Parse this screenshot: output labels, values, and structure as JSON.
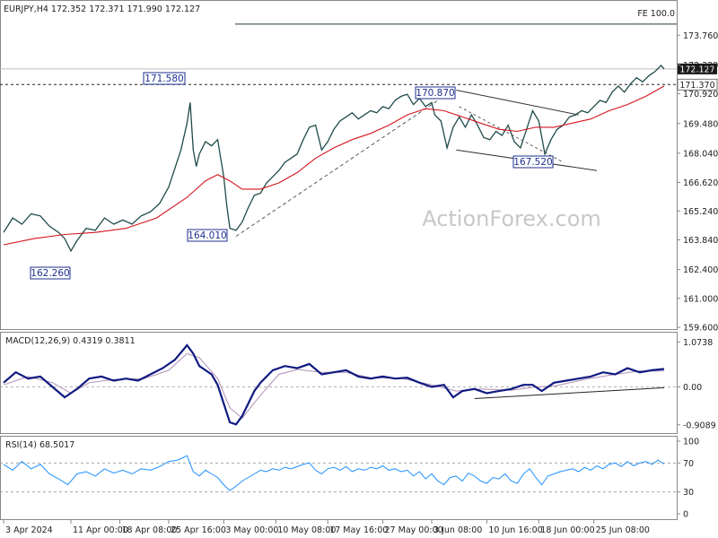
{
  "chart_data": {
    "type": "line",
    "symbol_header": "EURJPY,H4  172.352 172.371 171.990 172.127",
    "watermark": "ActionForex.com",
    "price_panel": {
      "ylim": [
        159.6,
        174.6
      ],
      "yticks": [
        "173.760",
        "172.320",
        "170.920",
        "169.480",
        "168.040",
        "166.620",
        "165.240",
        "163.840",
        "162.400",
        "161.000",
        "159.600"
      ],
      "current_price": "172.127",
      "resistance_level": "171.370",
      "fe_label": "FE 100.0",
      "fe_value": 174.3,
      "annotations": [
        {
          "label": "171.580",
          "value": 171.58
        },
        {
          "label": "164.010",
          "value": 164.01
        },
        {
          "label": "162.260",
          "value": 162.26
        },
        {
          "label": "170.870",
          "value": 170.87
        },
        {
          "label": "167.520",
          "value": 167.52
        }
      ],
      "price_series": [
        [
          0,
          164.2
        ],
        [
          3,
          164.9
        ],
        [
          6,
          164.6
        ],
        [
          9,
          165.1
        ],
        [
          12,
          165.0
        ],
        [
          15,
          164.5
        ],
        [
          18,
          164.2
        ],
        [
          20,
          163.9
        ],
        [
          22,
          163.3
        ],
        [
          24,
          163.8
        ],
        [
          27,
          164.4
        ],
        [
          30,
          164.3
        ],
        [
          33,
          164.9
        ],
        [
          36,
          164.6
        ],
        [
          39,
          164.8
        ],
        [
          42,
          164.6
        ],
        [
          45,
          165.0
        ],
        [
          48,
          165.2
        ],
        [
          51,
          165.6
        ],
        [
          54,
          166.4
        ],
        [
          56,
          167.3
        ],
        [
          58,
          168.2
        ],
        [
          60,
          169.5
        ],
        [
          61,
          170.5
        ],
        [
          62,
          168.2
        ],
        [
          63,
          167.4
        ],
        [
          64,
          168.0
        ],
        [
          66,
          168.6
        ],
        [
          68,
          168.4
        ],
        [
          70,
          168.7
        ],
        [
          72,
          166.9
        ],
        [
          73,
          165.5
        ],
        [
          74,
          164.4
        ],
        [
          76,
          164.3
        ],
        [
          78,
          164.7
        ],
        [
          80,
          165.4
        ],
        [
          82,
          166.0
        ],
        [
          84,
          166.1
        ],
        [
          86,
          166.6
        ],
        [
          88,
          166.9
        ],
        [
          90,
          167.2
        ],
        [
          92,
          167.6
        ],
        [
          94,
          167.8
        ],
        [
          96,
          168.0
        ],
        [
          98,
          168.7
        ],
        [
          100,
          169.3
        ],
        [
          102,
          169.4
        ],
        [
          104,
          168.2
        ],
        [
          106,
          168.6
        ],
        [
          108,
          169.2
        ],
        [
          110,
          169.6
        ],
        [
          112,
          169.8
        ],
        [
          114,
          170.0
        ],
        [
          116,
          169.7
        ],
        [
          118,
          169.9
        ],
        [
          120,
          170.1
        ],
        [
          122,
          170.0
        ],
        [
          124,
          170.3
        ],
        [
          126,
          170.2
        ],
        [
          128,
          170.6
        ],
        [
          130,
          170.8
        ],
        [
          132,
          170.9
        ],
        [
          134,
          170.4
        ],
        [
          136,
          170.7
        ],
        [
          138,
          170.3
        ],
        [
          140,
          170.5
        ],
        [
          141,
          169.9
        ],
        [
          143,
          169.6
        ],
        [
          145,
          168.3
        ],
        [
          147,
          169.3
        ],
        [
          149,
          169.8
        ],
        [
          151,
          169.3
        ],
        [
          153,
          169.9
        ],
        [
          155,
          169.4
        ],
        [
          157,
          168.8
        ],
        [
          159,
          168.7
        ],
        [
          161,
          169.1
        ],
        [
          163,
          168.9
        ],
        [
          165,
          169.4
        ],
        [
          167,
          168.6
        ],
        [
          169,
          168.3
        ],
        [
          171,
          169.2
        ],
        [
          173,
          170.1
        ],
        [
          175,
          169.6
        ],
        [
          177,
          168.0
        ],
        [
          179,
          168.7
        ],
        [
          181,
          169.2
        ],
        [
          183,
          169.4
        ],
        [
          185,
          169.8
        ],
        [
          187,
          169.9
        ],
        [
          189,
          170.1
        ],
        [
          191,
          170.0
        ],
        [
          193,
          170.3
        ],
        [
          195,
          170.6
        ],
        [
          197,
          170.5
        ],
        [
          199,
          171.0
        ],
        [
          201,
          171.3
        ],
        [
          203,
          171.0
        ],
        [
          205,
          171.4
        ],
        [
          207,
          171.7
        ],
        [
          209,
          171.5
        ],
        [
          211,
          171.8
        ],
        [
          213,
          172.0
        ],
        [
          215,
          172.3
        ],
        [
          216,
          172.127
        ]
      ],
      "ma_series": [
        [
          0,
          163.6
        ],
        [
          10,
          163.9
        ],
        [
          20,
          164.1
        ],
        [
          30,
          164.2
        ],
        [
          40,
          164.4
        ],
        [
          50,
          164.9
        ],
        [
          60,
          165.9
        ],
        [
          66,
          166.7
        ],
        [
          70,
          167.0
        ],
        [
          74,
          166.7
        ],
        [
          78,
          166.3
        ],
        [
          84,
          166.3
        ],
        [
          90,
          166.6
        ],
        [
          96,
          167.1
        ],
        [
          102,
          167.8
        ],
        [
          108,
          168.3
        ],
        [
          114,
          168.7
        ],
        [
          120,
          169.0
        ],
        [
          126,
          169.4
        ],
        [
          132,
          169.9
        ],
        [
          138,
          170.2
        ],
        [
          144,
          170.1
        ],
        [
          150,
          169.8
        ],
        [
          156,
          169.5
        ],
        [
          162,
          169.2
        ],
        [
          168,
          169.1
        ],
        [
          174,
          169.3
        ],
        [
          180,
          169.3
        ],
        [
          186,
          169.5
        ],
        [
          192,
          169.7
        ],
        [
          198,
          170.1
        ],
        [
          204,
          170.4
        ],
        [
          210,
          170.8
        ],
        [
          216,
          171.3
        ]
      ]
    },
    "macd_panel": {
      "label": "MACD(12,26,9) 0.4319 0.3811",
      "ylim": [
        -1.0,
        1.15
      ],
      "yticks": [
        "1.0738",
        "0.00",
        "-0.9089"
      ],
      "macd_series": [
        [
          0,
          0.1
        ],
        [
          4,
          0.35
        ],
        [
          8,
          0.2
        ],
        [
          12,
          0.25
        ],
        [
          16,
          0.0
        ],
        [
          20,
          -0.25
        ],
        [
          24,
          -0.05
        ],
        [
          28,
          0.2
        ],
        [
          32,
          0.25
        ],
        [
          36,
          0.15
        ],
        [
          40,
          0.2
        ],
        [
          44,
          0.15
        ],
        [
          48,
          0.3
        ],
        [
          52,
          0.45
        ],
        [
          56,
          0.65
        ],
        [
          60,
          1.0
        ],
        [
          62,
          0.8
        ],
        [
          64,
          0.5
        ],
        [
          66,
          0.4
        ],
        [
          68,
          0.3
        ],
        [
          70,
          0.05
        ],
        [
          72,
          -0.4
        ],
        [
          74,
          -0.85
        ],
        [
          76,
          -0.9
        ],
        [
          78,
          -0.7
        ],
        [
          80,
          -0.4
        ],
        [
          82,
          -0.1
        ],
        [
          84,
          0.1
        ],
        [
          88,
          0.4
        ],
        [
          92,
          0.5
        ],
        [
          96,
          0.45
        ],
        [
          100,
          0.55
        ],
        [
          104,
          0.3
        ],
        [
          108,
          0.35
        ],
        [
          112,
          0.4
        ],
        [
          116,
          0.25
        ],
        [
          120,
          0.2
        ],
        [
          124,
          0.25
        ],
        [
          128,
          0.2
        ],
        [
          132,
          0.22
        ],
        [
          136,
          0.1
        ],
        [
          140,
          0.0
        ],
        [
          144,
          0.05
        ],
        [
          147,
          -0.25
        ],
        [
          150,
          -0.1
        ],
        [
          154,
          -0.05
        ],
        [
          158,
          -0.15
        ],
        [
          162,
          -0.1
        ],
        [
          166,
          -0.05
        ],
        [
          170,
          0.05
        ],
        [
          173,
          0.05
        ],
        [
          176,
          -0.1
        ],
        [
          180,
          0.1
        ],
        [
          184,
          0.15
        ],
        [
          188,
          0.2
        ],
        [
          192,
          0.25
        ],
        [
          196,
          0.35
        ],
        [
          200,
          0.3
        ],
        [
          204,
          0.45
        ],
        [
          208,
          0.35
        ],
        [
          212,
          0.4
        ],
        [
          216,
          0.43
        ]
      ],
      "signal_series": [
        [
          0,
          0.05
        ],
        [
          8,
          0.25
        ],
        [
          16,
          0.1
        ],
        [
          22,
          -0.15
        ],
        [
          28,
          0.1
        ],
        [
          36,
          0.18
        ],
        [
          46,
          0.2
        ],
        [
          54,
          0.4
        ],
        [
          60,
          0.8
        ],
        [
          64,
          0.7
        ],
        [
          70,
          0.2
        ],
        [
          74,
          -0.5
        ],
        [
          78,
          -0.75
        ],
        [
          84,
          -0.2
        ],
        [
          90,
          0.3
        ],
        [
          96,
          0.42
        ],
        [
          104,
          0.35
        ],
        [
          112,
          0.35
        ],
        [
          120,
          0.22
        ],
        [
          130,
          0.21
        ],
        [
          140,
          0.05
        ],
        [
          148,
          -0.1
        ],
        [
          156,
          -0.05
        ],
        [
          166,
          -0.08
        ],
        [
          174,
          0.0
        ],
        [
          180,
          0.02
        ],
        [
          190,
          0.18
        ],
        [
          200,
          0.3
        ],
        [
          208,
          0.38
        ],
        [
          216,
          0.38
        ]
      ]
    },
    "rsi_panel": {
      "label": "RSI(14) 68.5017",
      "ylim": [
        0,
        100
      ],
      "yticks": [
        "100",
        "70",
        "30",
        "0"
      ],
      "rsi_series": [
        [
          0,
          68
        ],
        [
          3,
          60
        ],
        [
          6,
          72
        ],
        [
          9,
          62
        ],
        [
          12,
          68
        ],
        [
          15,
          55
        ],
        [
          18,
          48
        ],
        [
          21,
          40
        ],
        [
          24,
          55
        ],
        [
          27,
          58
        ],
        [
          30,
          52
        ],
        [
          33,
          62
        ],
        [
          36,
          56
        ],
        [
          39,
          60
        ],
        [
          42,
          55
        ],
        [
          45,
          62
        ],
        [
          48,
          60
        ],
        [
          51,
          65
        ],
        [
          54,
          72
        ],
        [
          57,
          74
        ],
        [
          60,
          80
        ],
        [
          62,
          58
        ],
        [
          64,
          52
        ],
        [
          66,
          60
        ],
        [
          68,
          55
        ],
        [
          70,
          50
        ],
        [
          72,
          40
        ],
        [
          74,
          32
        ],
        [
          76,
          38
        ],
        [
          78,
          45
        ],
        [
          80,
          50
        ],
        [
          82,
          55
        ],
        [
          84,
          60
        ],
        [
          86,
          58
        ],
        [
          88,
          62
        ],
        [
          90,
          60
        ],
        [
          92,
          64
        ],
        [
          94,
          62
        ],
        [
          96,
          65
        ],
        [
          98,
          68
        ],
        [
          100,
          70
        ],
        [
          102,
          60
        ],
        [
          104,
          55
        ],
        [
          106,
          62
        ],
        [
          108,
          64
        ],
        [
          110,
          60
        ],
        [
          112,
          65
        ],
        [
          114,
          58
        ],
        [
          116,
          62
        ],
        [
          118,
          60
        ],
        [
          120,
          64
        ],
        [
          122,
          62
        ],
        [
          124,
          66
        ],
        [
          126,
          60
        ],
        [
          128,
          62
        ],
        [
          130,
          58
        ],
        [
          132,
          60
        ],
        [
          134,
          52
        ],
        [
          136,
          58
        ],
        [
          138,
          48
        ],
        [
          140,
          55
        ],
        [
          142,
          45
        ],
        [
          144,
          40
        ],
        [
          146,
          50
        ],
        [
          148,
          52
        ],
        [
          150,
          45
        ],
        [
          152,
          56
        ],
        [
          154,
          52
        ],
        [
          156,
          45
        ],
        [
          158,
          42
        ],
        [
          160,
          50
        ],
        [
          162,
          48
        ],
        [
          164,
          55
        ],
        [
          166,
          45
        ],
        [
          168,
          42
        ],
        [
          170,
          55
        ],
        [
          172,
          62
        ],
        [
          174,
          50
        ],
        [
          176,
          40
        ],
        [
          178,
          52
        ],
        [
          180,
          55
        ],
        [
          182,
          58
        ],
        [
          184,
          60
        ],
        [
          186,
          62
        ],
        [
          188,
          58
        ],
        [
          190,
          64
        ],
        [
          192,
          60
        ],
        [
          194,
          66
        ],
        [
          196,
          62
        ],
        [
          198,
          68
        ],
        [
          200,
          70
        ],
        [
          202,
          65
        ],
        [
          204,
          72
        ],
        [
          206,
          66
        ],
        [
          208,
          70
        ],
        [
          210,
          72
        ],
        [
          212,
          68
        ],
        [
          214,
          74
        ],
        [
          216,
          68.5
        ]
      ]
    },
    "x_ticks": [
      {
        "label": "3 Apr 2024",
        "bar": 0
      },
      {
        "label": "11 Apr 00:00",
        "bar": 22
      },
      {
        "label": "18 Apr 08:00",
        "bar": 38
      },
      {
        "label": "25 Apr 16:00",
        "bar": 54
      },
      {
        "label": "3 May 00:00",
        "bar": 72
      },
      {
        "label": "10 May 08:00",
        "bar": 89
      },
      {
        "label": "17 May 16:00",
        "bar": 106
      },
      {
        "label": "27 May 00:00",
        "bar": 124
      },
      {
        "label": "3 Jun 08:00",
        "bar": 140
      },
      {
        "label": "10 Jun 16:00",
        "bar": 158
      },
      {
        "label": "18 Jun 00:00",
        "bar": 175
      },
      {
        "label": "25 Jun 08:00",
        "bar": 193
      }
    ],
    "colors": {
      "price": "#1f4a4a",
      "ma": "#d4141e",
      "macd": "#101a80",
      "signal": "#b08fb8",
      "rsi": "#1e90ff",
      "trend": "#000000"
    }
  }
}
